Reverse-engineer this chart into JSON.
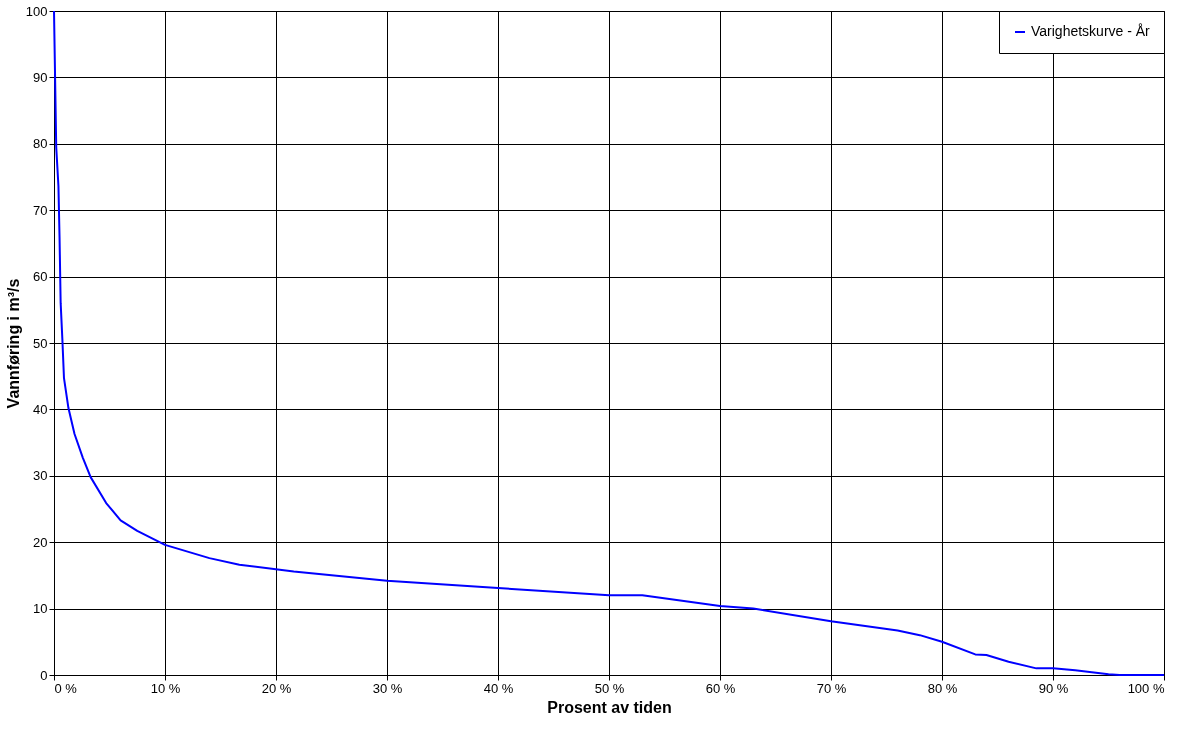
{
  "chart_data": {
    "type": "line",
    "xlabel": "Prosent av tiden",
    "ylabel": "Vannføring i m³/s",
    "x": [
      0,
      0.2,
      0.4,
      0.5,
      0.6,
      0.75,
      0.9,
      1.3,
      1.85,
      2.6,
      3.3,
      4.7,
      6.0,
      7.5,
      10,
      14,
      16.7,
      21.6,
      30,
      40,
      50,
      53,
      60,
      63,
      70,
      76,
      78,
      80,
      83,
      84,
      86,
      88.5,
      90,
      92,
      95,
      96,
      100
    ],
    "series": [
      {
        "name": "Varighetskurve - År",
        "color": "#0000ff",
        "values": [
          100,
          79.5,
          73.6,
          65.8,
          56,
          50.7,
          44.7,
          40.2,
          36.3,
          32.7,
          29.8,
          25.9,
          23.3,
          21.7,
          19.6,
          17.6,
          16.6,
          15.6,
          14.2,
          13.1,
          12.0,
          12.0,
          10.4,
          10,
          8.1,
          6.7,
          6,
          5.0,
          3.1,
          3,
          2,
          1.0,
          1,
          0.7,
          0.1,
          0,
          0
        ]
      }
    ],
    "xlim": [
      0,
      100
    ],
    "ylim": [
      0,
      100
    ],
    "xticks": [
      {
        "value": 0,
        "label": "0 %"
      },
      {
        "value": 10,
        "label": "10 %"
      },
      {
        "value": 20,
        "label": "20 %"
      },
      {
        "value": 30,
        "label": "30 %"
      },
      {
        "value": 40,
        "label": "40 %"
      },
      {
        "value": 50,
        "label": "50 %"
      },
      {
        "value": 60,
        "label": "60 %"
      },
      {
        "value": 70,
        "label": "70 %"
      },
      {
        "value": 80,
        "label": "80 %"
      },
      {
        "value": 90,
        "label": "90 %"
      },
      {
        "value": 100,
        "label": "100 %"
      }
    ],
    "yticks": [
      0,
      10,
      20,
      30,
      40,
      50,
      60,
      70,
      80,
      90,
      100
    ],
    "grid": true,
    "legend": "top right",
    "marker": "none",
    "line_style": "solid"
  }
}
